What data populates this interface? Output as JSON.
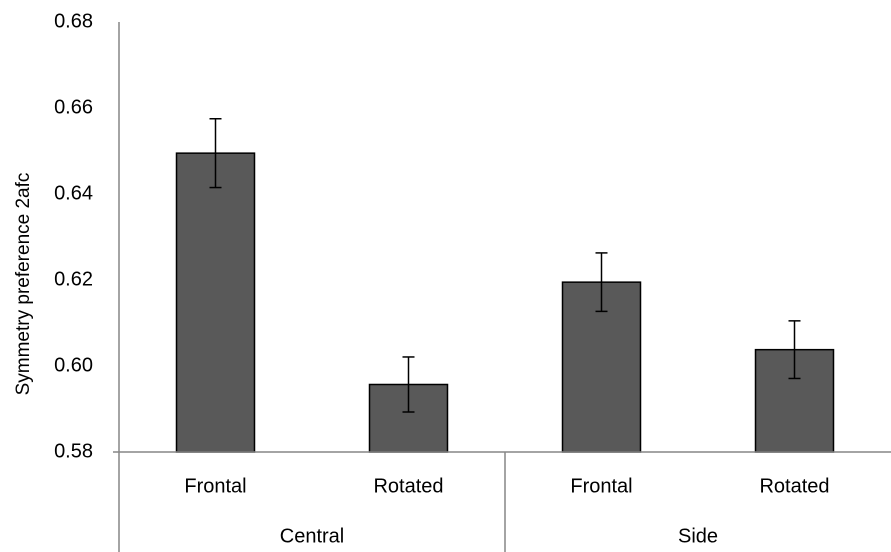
{
  "chart_data": {
    "type": "bar",
    "title": "",
    "xlabel": "",
    "ylabel": "Symmetry preference 2afc",
    "ylim": [
      0.58,
      0.68
    ],
    "yticks": [
      "0.58",
      "0.60",
      "0.62",
      "0.64",
      "0.66",
      "0.68"
    ],
    "categories": [
      "Frontal",
      "Rotated",
      "Frontal",
      "Rotated"
    ],
    "groups": [
      {
        "label": "Central",
        "categories": [
          "Frontal",
          "Rotated"
        ]
      },
      {
        "label": "Side",
        "categories": [
          "Frontal",
          "Rotated"
        ]
      }
    ],
    "values": [
      0.6495,
      0.5957,
      0.6195,
      0.6038
    ],
    "error": [
      0.008,
      0.0064,
      0.0068,
      0.0067
    ],
    "grid": false,
    "legend": "none",
    "colors": {
      "bar": "#595959",
      "bar_stroke": "#000000",
      "axis": "#868686",
      "error_bar": "#000000"
    }
  }
}
